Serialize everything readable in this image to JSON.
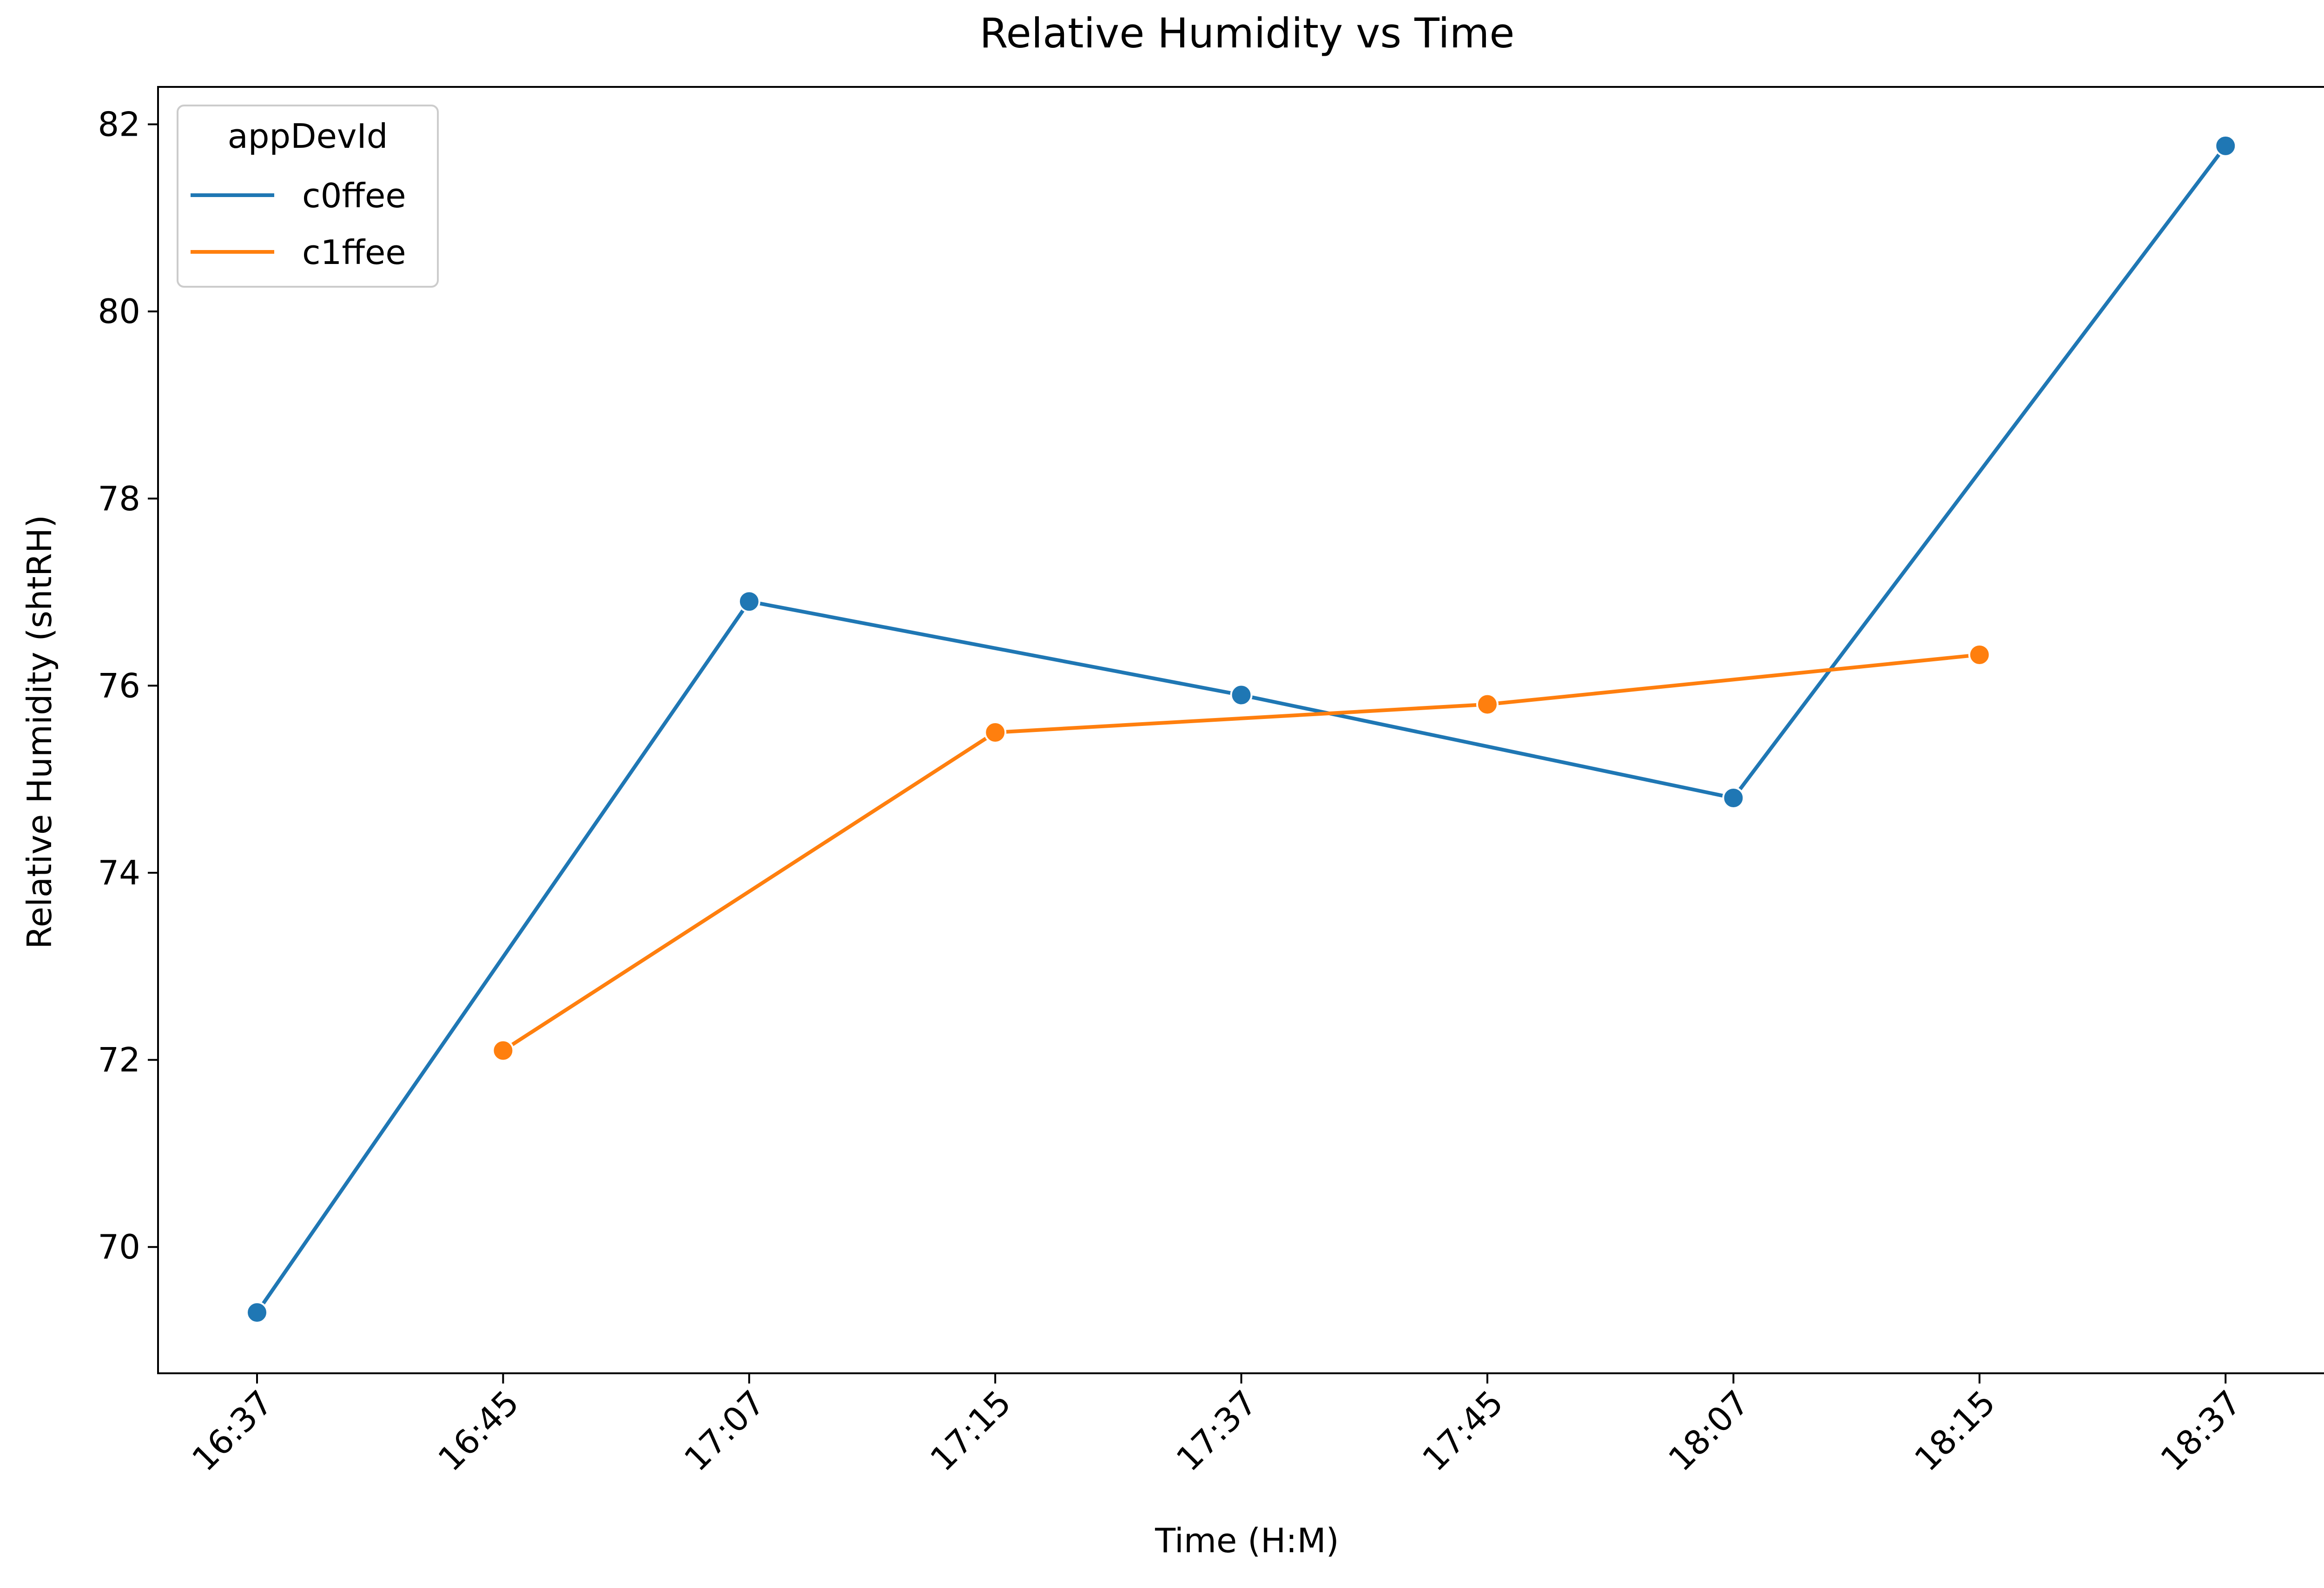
{
  "chart_data": {
    "type": "line",
    "title": "Relative Humidity vs Time",
    "xlabel": "Time (H:M)",
    "ylabel": "Relative Humidity (shtRH)",
    "categories": [
      "16:37",
      "16:45",
      "17:07",
      "17:15",
      "17:37",
      "17:45",
      "18:07",
      "18:15",
      "18:37"
    ],
    "ylim": [
      68.65,
      82.4
    ],
    "yticks": [
      70,
      72,
      74,
      76,
      78,
      80,
      82
    ],
    "grid": false,
    "legend": {
      "title": "appDevId",
      "placement": "top-left"
    },
    "series": [
      {
        "name": "c0ffee",
        "color": "#1f77b4",
        "points": [
          {
            "x": "16:37",
            "y": 69.3
          },
          {
            "x": "17:07",
            "y": 76.9
          },
          {
            "x": "17:37",
            "y": 75.9
          },
          {
            "x": "18:07",
            "y": 74.8
          },
          {
            "x": "18:37",
            "y": 81.77
          }
        ]
      },
      {
        "name": "c1ffee",
        "color": "#ff7f0e",
        "points": [
          {
            "x": "16:45",
            "y": 72.1
          },
          {
            "x": "17:15",
            "y": 75.5
          },
          {
            "x": "17:45",
            "y": 75.8
          },
          {
            "x": "18:15",
            "y": 76.33
          }
        ]
      }
    ]
  }
}
